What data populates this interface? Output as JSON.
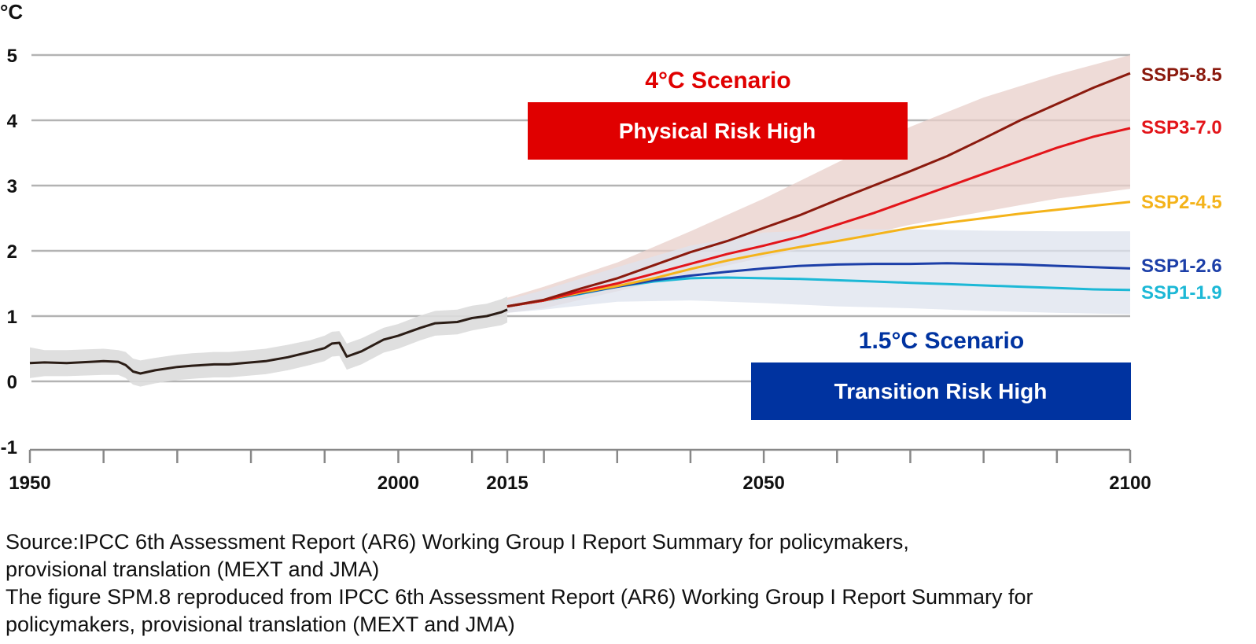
{
  "chart_data": {
    "type": "line",
    "unit": "°C",
    "ylim": [
      -1,
      5
    ],
    "y_ticks": [
      "5",
      "4",
      "3",
      "2",
      "1",
      "0",
      "-1"
    ],
    "x_tick_labels": [
      {
        "label": "1950",
        "x": 1950
      },
      {
        "label": "2000",
        "x": 2000
      },
      {
        "label": "2015",
        "x": 2015
      },
      {
        "label": "2050",
        "x": 2050
      },
      {
        "label": "2100",
        "x": 2100
      }
    ],
    "grid": true,
    "colors": {
      "historical": "#2b1d16",
      "historical_band": "#dcdcdc",
      "high_band": "#e8cfca",
      "low_band": "#dde3ee",
      "red_box": "#e00000",
      "blue_box": "#0033a0",
      "red_title": "#e00000",
      "blue_title": "#0033a0"
    },
    "historical": {
      "x": [
        1950,
        1952,
        1955,
        1960,
        1962,
        1963,
        1964,
        1965,
        1967,
        1970,
        1972,
        1975,
        1977,
        1980,
        1982,
        1983,
        1985,
        1988,
        1990,
        1991,
        1992,
        1993,
        1995,
        1998,
        2000,
        2003,
        2005,
        2008,
        2010,
        2012,
        2014,
        2015
      ],
      "y": [
        0.28,
        0.29,
        0.28,
        0.31,
        0.3,
        0.25,
        0.15,
        0.12,
        0.17,
        0.22,
        0.24,
        0.26,
        0.26,
        0.29,
        0.31,
        0.33,
        0.37,
        0.45,
        0.51,
        0.58,
        0.59,
        0.38,
        0.46,
        0.64,
        0.7,
        0.82,
        0.89,
        0.91,
        0.97,
        1.0,
        1.06,
        1.1
      ],
      "band_upper": [
        0.52,
        0.48,
        0.48,
        0.5,
        0.48,
        0.45,
        0.35,
        0.32,
        0.36,
        0.41,
        0.43,
        0.45,
        0.45,
        0.48,
        0.5,
        0.52,
        0.56,
        0.63,
        0.7,
        0.76,
        0.77,
        0.58,
        0.66,
        0.82,
        0.88,
        1.01,
        1.08,
        1.1,
        1.16,
        1.19,
        1.26,
        1.3
      ],
      "band_lower": [
        0.05,
        0.08,
        0.08,
        0.1,
        0.1,
        0.05,
        -0.05,
        -0.08,
        -0.03,
        0.02,
        0.04,
        0.06,
        0.06,
        0.09,
        0.11,
        0.13,
        0.17,
        0.25,
        0.31,
        0.38,
        0.39,
        0.18,
        0.26,
        0.44,
        0.5,
        0.63,
        0.7,
        0.72,
        0.78,
        0.82,
        0.86,
        0.9
      ]
    },
    "bands": [
      {
        "x": [
          2015,
          2020,
          2030,
          2040,
          2050,
          2060,
          2070,
          2080,
          2090,
          2100
        ],
        "upper": [
          1.28,
          1.45,
          1.82,
          2.3,
          2.8,
          3.35,
          3.9,
          4.35,
          4.7,
          5.0
        ],
        "lower": [
          1.05,
          1.12,
          1.38,
          1.65,
          1.9,
          2.15,
          2.4,
          2.6,
          2.8,
          2.95
        ]
      },
      {
        "x": [
          2015,
          2020,
          2030,
          2040,
          2050,
          2060,
          2070,
          2080,
          2090,
          2100
        ],
        "upper": [
          1.25,
          1.4,
          1.75,
          2.08,
          2.28,
          2.33,
          2.33,
          2.31,
          2.3,
          2.3
        ],
        "lower": [
          1.05,
          1.1,
          1.22,
          1.24,
          1.2,
          1.15,
          1.12,
          1.08,
          1.05,
          1.03
        ]
      }
    ],
    "series": [
      {
        "name": "SSP5-8.5",
        "color": "#8b1a0e",
        "x": [
          2015,
          2020,
          2025,
          2030,
          2035,
          2040,
          2045,
          2050,
          2055,
          2060,
          2065,
          2070,
          2075,
          2080,
          2085,
          2090,
          2095,
          2100
        ],
        "y": [
          1.15,
          1.25,
          1.42,
          1.58,
          1.78,
          1.98,
          2.15,
          2.35,
          2.55,
          2.78,
          3.0,
          3.22,
          3.45,
          3.72,
          4.0,
          4.25,
          4.5,
          4.72
        ]
      },
      {
        "name": "SSP3-7.0",
        "color": "#e3151a",
        "x": [
          2015,
          2020,
          2025,
          2030,
          2035,
          2040,
          2045,
          2050,
          2055,
          2060,
          2065,
          2070,
          2075,
          2080,
          2085,
          2090,
          2095,
          2100
        ],
        "y": [
          1.15,
          1.24,
          1.38,
          1.5,
          1.65,
          1.8,
          1.95,
          2.08,
          2.22,
          2.4,
          2.58,
          2.78,
          2.98,
          3.18,
          3.38,
          3.58,
          3.75,
          3.88
        ]
      },
      {
        "name": "SSP2-4.5",
        "color": "#f4b31a",
        "x": [
          2015,
          2020,
          2025,
          2030,
          2035,
          2040,
          2045,
          2050,
          2055,
          2060,
          2065,
          2070,
          2075,
          2080,
          2085,
          2090,
          2095,
          2100
        ],
        "y": [
          1.15,
          1.24,
          1.36,
          1.46,
          1.58,
          1.72,
          1.85,
          1.96,
          2.06,
          2.15,
          2.25,
          2.35,
          2.43,
          2.5,
          2.57,
          2.63,
          2.69,
          2.75
        ]
      },
      {
        "name": "SSP1-2.6",
        "color": "#1c3fa8",
        "x": [
          2015,
          2020,
          2025,
          2030,
          2035,
          2040,
          2045,
          2050,
          2055,
          2060,
          2065,
          2070,
          2075,
          2080,
          2085,
          2090,
          2095,
          2100
        ],
        "y": [
          1.15,
          1.24,
          1.35,
          1.45,
          1.55,
          1.62,
          1.68,
          1.73,
          1.77,
          1.79,
          1.8,
          1.8,
          1.81,
          1.8,
          1.79,
          1.77,
          1.75,
          1.73
        ]
      },
      {
        "name": "SSP1-1.9",
        "color": "#1cb8d6",
        "x": [
          2015,
          2020,
          2025,
          2030,
          2035,
          2040,
          2045,
          2050,
          2055,
          2060,
          2065,
          2070,
          2075,
          2080,
          2085,
          2090,
          2095,
          2100
        ],
        "y": [
          1.15,
          1.24,
          1.34,
          1.45,
          1.53,
          1.58,
          1.59,
          1.58,
          1.57,
          1.55,
          1.53,
          1.51,
          1.49,
          1.47,
          1.45,
          1.43,
          1.41,
          1.4
        ]
      }
    ],
    "annotations": {
      "high": {
        "title": "4°C Scenario",
        "box": "Physical Risk High"
      },
      "low": {
        "title": "1.5°C Scenario",
        "box": "Transition Risk High"
      }
    }
  },
  "source_lines": [
    "Source:IPCC 6th Assessment Report (AR6) Working Group I Report  Summary for policymakers,",
    "provisional translation (MEXT and JMA)",
    "The figure SPM.8 reproduced from IPCC 6th Assessment Report (AR6) Working Group I Report  Summary for",
    "policymakers, provisional translation (MEXT and JMA)"
  ]
}
